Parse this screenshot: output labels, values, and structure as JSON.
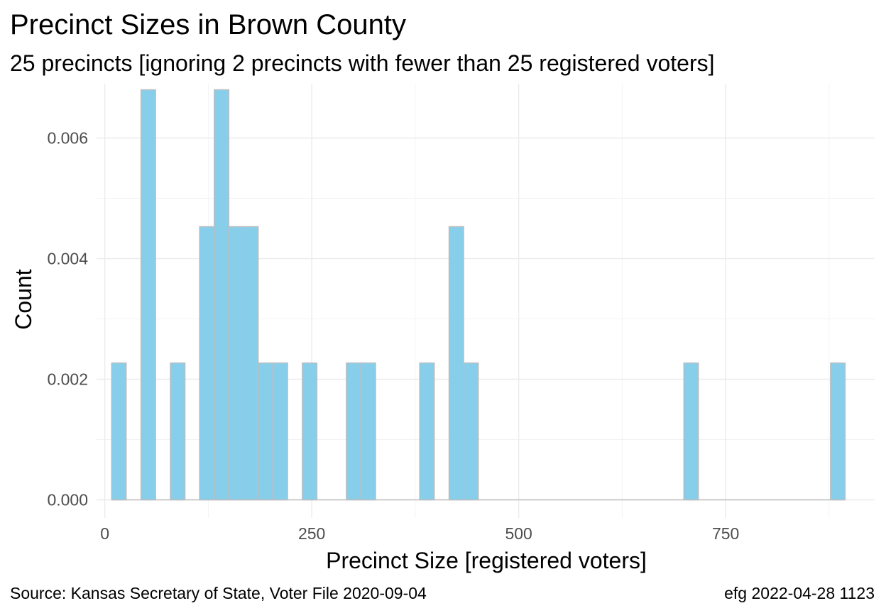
{
  "chart_data": {
    "type": "bar",
    "title": "Precinct Sizes in Brown County",
    "subtitle": "25 precincts [ignoring 2 precincts with fewer than 25 registered voters]",
    "xlabel": "Precinct Size [registered voters]",
    "ylabel": "Count",
    "xlim": [
      -10,
      930
    ],
    "ylim": [
      -0.0003,
      0.0069
    ],
    "x_ticks": [
      0,
      250,
      500,
      750
    ],
    "x_tick_labels": [
      "0",
      "250",
      "500",
      "750"
    ],
    "y_ticks": [
      0,
      0.002,
      0.004,
      0.006
    ],
    "y_tick_labels": [
      "0.000",
      "0.002",
      "0.004",
      "0.006"
    ],
    "x_minor_ticks": [
      125,
      375,
      625,
      875
    ],
    "y_minor_ticks": [
      0.001,
      0.003,
      0.005
    ],
    "grid": true,
    "bin_width": 17.7,
    "bars": [
      {
        "x": 17.0,
        "value": 0.00227
      },
      {
        "x": 52.5,
        "value": 0.0068
      },
      {
        "x": 88.0,
        "value": 0.00227
      },
      {
        "x": 123.3,
        "value": 0.00453
      },
      {
        "x": 141.0,
        "value": 0.0068
      },
      {
        "x": 158.8,
        "value": 0.00453
      },
      {
        "x": 176.5,
        "value": 0.00453
      },
      {
        "x": 194.2,
        "value": 0.00227
      },
      {
        "x": 212.0,
        "value": 0.00227
      },
      {
        "x": 247.4,
        "value": 0.00227
      },
      {
        "x": 300.6,
        "value": 0.00227
      },
      {
        "x": 318.3,
        "value": 0.00227
      },
      {
        "x": 389.2,
        "value": 0.00227
      },
      {
        "x": 424.7,
        "value": 0.00453
      },
      {
        "x": 442.4,
        "value": 0.00227
      },
      {
        "x": 708.3,
        "value": 0.00227
      },
      {
        "x": 885.5,
        "value": 0.00227
      }
    ]
  },
  "footer": {
    "source": "Source:  Kansas Secretary of State, Voter File  2020-09-04",
    "credit": "efg 2022-04-28 1123"
  }
}
